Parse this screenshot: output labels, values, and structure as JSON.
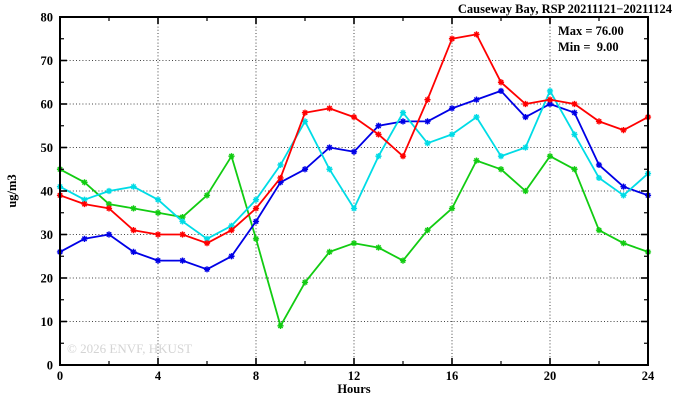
{
  "title": "Causeway Bay, RSP 20211121−20211124",
  "stats": {
    "max_label": "Max = 76.00",
    "min_label": "Min =  9.00"
  },
  "watermark": "© 2026 ENVF, HKUST",
  "axes": {
    "x_label": "Hours",
    "y_label": "ug/m3"
  },
  "chart_data": {
    "type": "line",
    "title": "Causeway Bay, RSP 20211121−20211124",
    "xlabel": "Hours",
    "ylabel": "ug/m3",
    "xlim": [
      0,
      24
    ],
    "ylim": [
      0,
      80
    ],
    "grid": true,
    "legend_position": "none",
    "x_major_ticks": [
      0,
      4,
      8,
      12,
      16,
      20,
      24
    ],
    "x_minor_step": 2,
    "y_major_ticks": [
      0,
      10,
      20,
      30,
      40,
      50,
      60,
      70,
      80
    ],
    "y_minor_step": 5,
    "x": [
      0,
      1,
      2,
      3,
      4,
      5,
      6,
      7,
      8,
      9,
      10,
      11,
      12,
      13,
      14,
      15,
      16,
      17,
      18,
      19,
      20,
      21,
      22,
      23,
      24
    ],
    "series": [
      {
        "name": "green-series",
        "color": "#12cc12",
        "values": [
          45,
          42,
          37,
          36,
          35,
          34,
          39,
          48,
          29,
          9,
          19,
          26,
          28,
          27,
          24,
          31,
          36,
          47,
          45,
          40,
          48,
          45,
          31,
          28,
          26
        ]
      },
      {
        "name": "blue-series",
        "color": "#0000e6",
        "values": [
          26,
          29,
          30,
          26,
          24,
          24,
          22,
          25,
          33,
          42,
          45,
          50,
          49,
          55,
          56,
          56,
          59,
          61,
          63,
          57,
          60,
          58,
          46,
          41,
          39
        ]
      },
      {
        "name": "cyan-series",
        "color": "#00dce6",
        "values": [
          41,
          38,
          40,
          41,
          38,
          33,
          29,
          32,
          38,
          46,
          56,
          45,
          36,
          48,
          58,
          51,
          53,
          57,
          48,
          50,
          63,
          53,
          43,
          39,
          44
        ]
      },
      {
        "name": "red-series",
        "color": "#ff0000",
        "values": [
          39,
          37,
          36,
          31,
          30,
          30,
          28,
          31,
          36,
          43,
          58,
          59,
          57,
          53,
          48,
          61,
          75,
          76,
          65,
          60,
          61,
          60,
          56,
          54,
          57
        ]
      }
    ],
    "annotations": {
      "max": "Max = 76.00",
      "min": "Min =  9.00"
    }
  },
  "colors": {
    "background": "#ffffff",
    "border": "#000000",
    "grid": "#444444",
    "watermark": "#d4d4d4"
  }
}
